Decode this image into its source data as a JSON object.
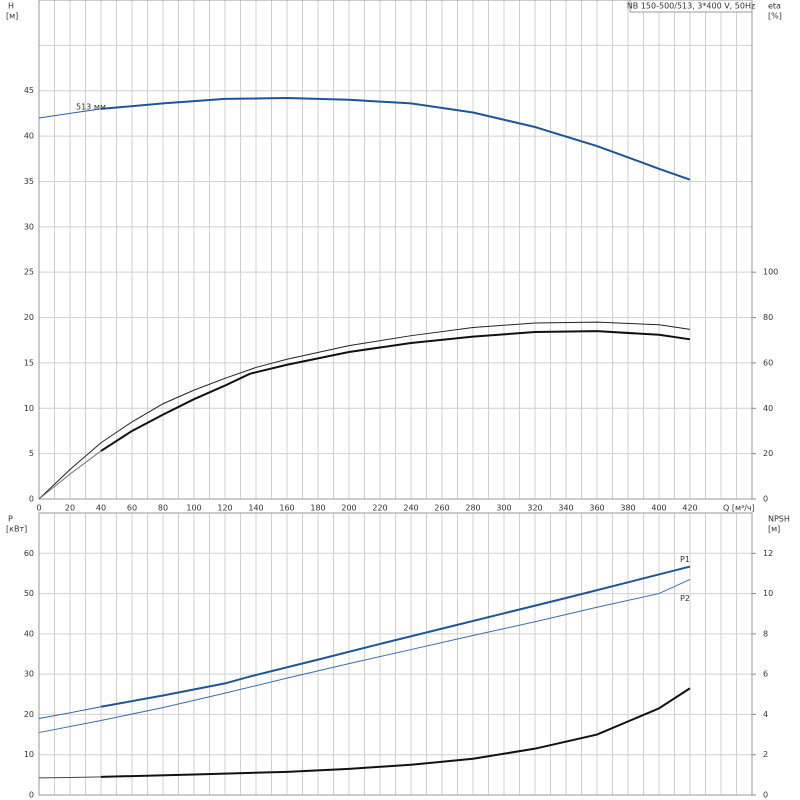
{
  "chart_data": [
    {
      "type": "line",
      "title": "NB 150-500/513, 3*400 V, 50Hz",
      "ylabel": "H",
      "yunit": "[м]",
      "y2label": "eta",
      "y2unit": "[%]",
      "xlabel": "Q [м³/ч]",
      "xlim": [
        0,
        460
      ],
      "xticks": [
        0,
        20,
        40,
        60,
        80,
        100,
        120,
        140,
        160,
        180,
        200,
        220,
        240,
        260,
        280,
        300,
        320,
        340,
        360,
        380,
        400,
        420
      ],
      "ylim": [
        0,
        55
      ],
      "yticks": [
        0,
        5,
        10,
        15,
        20,
        25,
        30,
        35,
        40,
        45
      ],
      "y2lim": [
        0,
        220
      ],
      "y2ticks": [
        0,
        20,
        40,
        60,
        80,
        100
      ],
      "grid": true,
      "series": [
        {
          "color": "#2a5f9e",
          "width": 1,
          "x": [
            0,
            20,
            40
          ],
          "values": [
            42,
            42.5,
            43
          ]
        },
        {
          "label": "513 мм",
          "color": "#1f5596",
          "width": 2,
          "x": [
            40,
            80,
            120,
            160,
            200,
            240,
            280,
            320,
            360,
            400,
            420
          ],
          "values": [
            43,
            43.6,
            44.1,
            44.2,
            44,
            43.6,
            42.6,
            41,
            38.9,
            36.4,
            35.2
          ]
        },
        {
          "axis": "y2",
          "color": "#222222",
          "width": 1,
          "x": [
            0,
            20,
            40,
            60,
            80,
            100,
            120,
            140,
            160,
            200,
            240,
            280,
            320,
            360,
            400,
            420
          ],
          "values": [
            0,
            13,
            24.8,
            34,
            42,
            48,
            53.2,
            58,
            61.6,
            67.6,
            72,
            75.6,
            77.6,
            78,
            76.8,
            74.8
          ]
        },
        {
          "axis": "y2",
          "color": "#777777",
          "width": 1,
          "x": [
            0,
            20,
            40
          ],
          "values": [
            0,
            11,
            21.2
          ]
        },
        {
          "axis": "y2",
          "color": "#111111",
          "width": 2,
          "x": [
            40,
            60,
            80,
            100,
            120,
            136,
            160,
            200,
            240,
            280,
            320,
            360,
            400,
            420
          ],
          "values": [
            21.2,
            30,
            37.2,
            44,
            50,
            55.2,
            59.2,
            64.8,
            68.8,
            71.6,
            73.6,
            74,
            72.4,
            70.4
          ]
        }
      ]
    },
    {
      "type": "line",
      "ylabel": "P",
      "yunit": "[кВт]",
      "y2label": "NPSH",
      "y2unit": "[м]",
      "xlim": [
        0,
        460
      ],
      "xticks": [
        0,
        20,
        40,
        60,
        80,
        100,
        120,
        140,
        160,
        180,
        200,
        220,
        240,
        260,
        280,
        300,
        320,
        340,
        360,
        380,
        400,
        420
      ],
      "ylim": [
        0,
        70
      ],
      "yticks": [
        0,
        10,
        20,
        30,
        40,
        50,
        60
      ],
      "y2lim": [
        0,
        14
      ],
      "y2ticks": [
        0,
        2,
        4,
        6,
        8,
        10,
        12
      ],
      "grid": true,
      "series": [
        {
          "color": "#2a5f9e",
          "width": 1,
          "x": [
            0,
            20,
            40
          ],
          "values": [
            19,
            20.4,
            21.9
          ]
        },
        {
          "label": "P1",
          "color": "#1f5596",
          "width": 2,
          "x": [
            40,
            80,
            120,
            136,
            180,
            220,
            260,
            300,
            340,
            380,
            420
          ],
          "values": [
            21.9,
            24.7,
            27.7,
            29.4,
            33.6,
            37.5,
            41.3,
            45.1,
            48.9,
            52.8,
            56.7
          ]
        },
        {
          "label": "P2",
          "color": "#3a6ea8",
          "width": 1,
          "x": [
            0,
            40,
            80,
            120,
            160,
            200,
            240,
            280,
            320,
            360,
            400,
            420
          ],
          "values": [
            15.5,
            18.5,
            21.7,
            25.3,
            29,
            32.6,
            36.1,
            39.6,
            43,
            46.6,
            50,
            53.5
          ]
        },
        {
          "axis": "y2",
          "color": "#444444",
          "width": 1,
          "x": [
            0,
            20,
            40
          ],
          "values": [
            0.85,
            0.87,
            0.9
          ]
        },
        {
          "axis": "y2",
          "color": "#111111",
          "width": 2,
          "x": [
            40,
            100,
            160,
            200,
            240,
            280,
            320,
            360,
            400,
            420
          ],
          "values": [
            0.9,
            1.02,
            1.15,
            1.3,
            1.5,
            1.8,
            2.3,
            3.0,
            4.3,
            5.3
          ]
        }
      ]
    }
  ]
}
